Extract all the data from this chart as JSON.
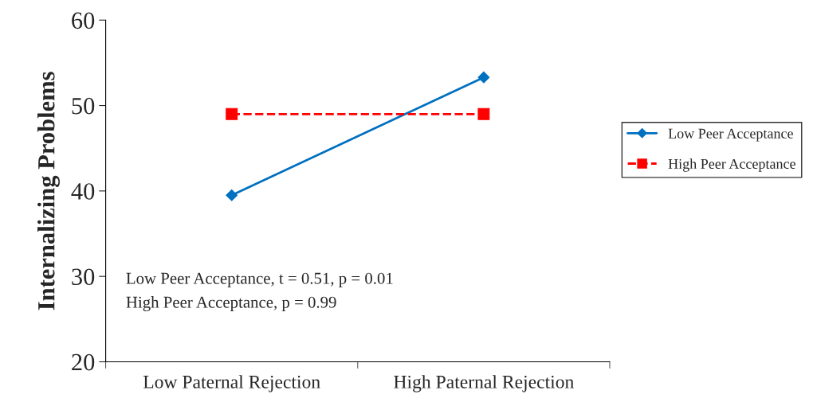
{
  "chart_data": {
    "type": "line",
    "ylabel": "Internalizing Problems",
    "categories": [
      "Low Paternal Rejection",
      "High Paternal Rejection"
    ],
    "series": [
      {
        "name": "Low Peer Acceptance",
        "color": "#0070c0",
        "values": [
          39.5,
          53.3
        ],
        "marker": "diamond",
        "line_style": "solid"
      },
      {
        "name": "High Peer Acceptance",
        "color": "#ff0000",
        "values": [
          49.0,
          49.0
        ],
        "marker": "square",
        "line_style": "dashed"
      }
    ],
    "ylim": [
      20,
      60
    ],
    "yticks": [
      20,
      30,
      40,
      50,
      60
    ],
    "grid": false,
    "legend": "right",
    "annotations": [
      "Low Peer Acceptance, t = 0.51, p = 0.01",
      "High Peer Acceptance, p = 0.99"
    ]
  }
}
